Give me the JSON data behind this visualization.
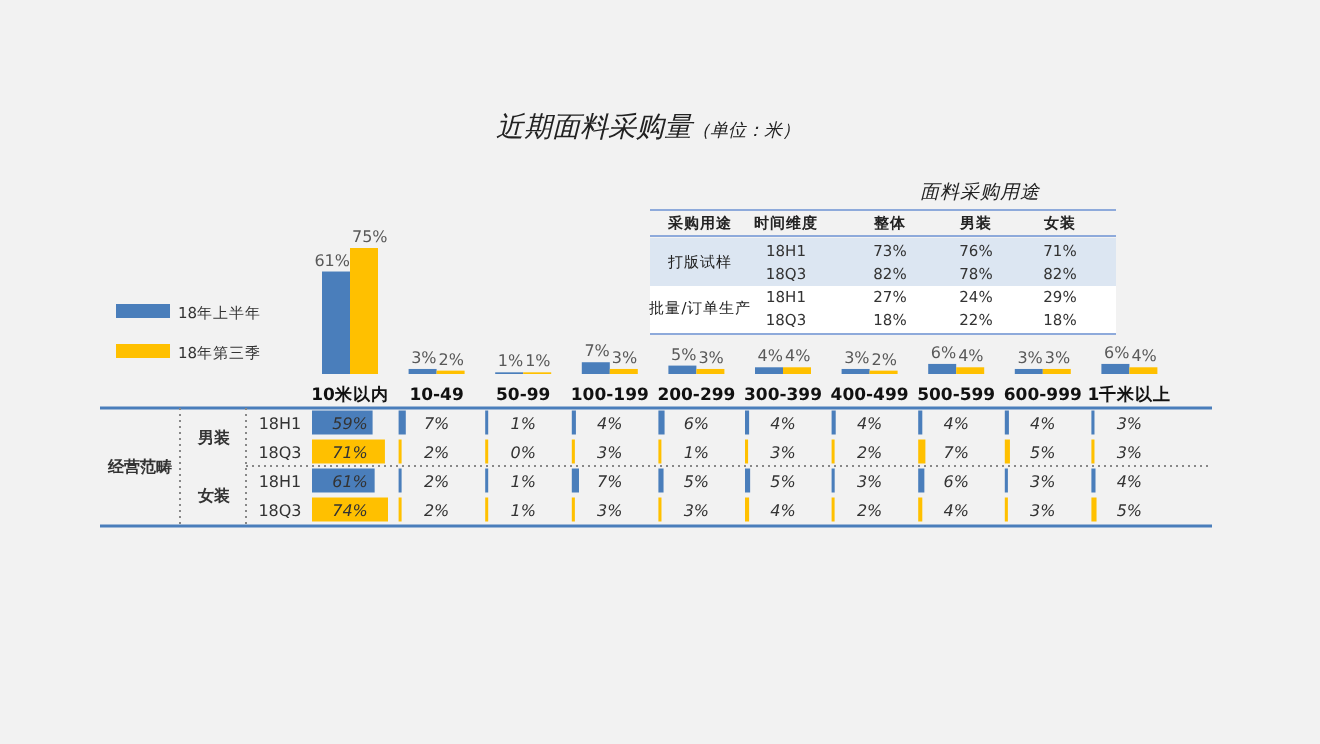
{
  "chart_data": [
    {
      "type": "bar",
      "title": "近期面料采购量",
      "subtitle": "（单位：米）",
      "categories": [
        "10米以内",
        "10-49",
        "50-99",
        "100-199",
        "200-299",
        "300-399",
        "400-499",
        "500-599",
        "600-999",
        "1千米以上"
      ],
      "legend": "left",
      "series": [
        {
          "name": "18年上半年",
          "color": "#4a7ebb",
          "values": [
            61,
            3,
            1,
            7,
            5,
            4,
            3,
            6,
            3,
            6
          ],
          "value_labels": [
            "61%",
            "3%",
            "1%",
            "7%",
            "5%",
            "4%",
            "3%",
            "6%",
            "3%",
            "6%"
          ]
        },
        {
          "name": "18年第三季",
          "color": "#ffc000",
          "values": [
            75,
            2,
            1,
            3,
            3,
            4,
            2,
            4,
            3,
            4
          ],
          "value_labels": [
            "75%",
            "2%",
            "1%",
            "3%",
            "3%",
            "4%",
            "2%",
            "4%",
            "3%",
            "4%"
          ]
        }
      ]
    },
    {
      "type": "other",
      "categories": [
        null,
        null,
        null,
        null,
        null,
        null,
        null,
        null,
        null,
        null
      ],
      "y_categories": [
        "18H1",
        "18Q3",
        "18H1",
        "18Q3"
      ],
      "colors": [
        "#4a7ebb",
        "#ffc000",
        "#4a7ebb",
        "#ffc000"
      ],
      "annotations": [
        "经营范畴",
        "男装",
        "女装"
      ],
      "cell_labels": [
        [
          "59%",
          "7%",
          "1%",
          "4%",
          "6%",
          "4%",
          "4%",
          "4%",
          "4%",
          "3%"
        ],
        [
          "71%",
          "2%",
          "0%",
          "3%",
          "1%",
          "3%",
          "2%",
          "7%",
          "5%",
          "3%"
        ],
        [
          "61%",
          "2%",
          "1%",
          "7%",
          "5%",
          "5%",
          "3%",
          "6%",
          "3%",
          "4%"
        ],
        [
          "74%",
          "2%",
          "1%",
          "3%",
          "3%",
          "4%",
          "2%",
          "4%",
          "3%",
          "5%"
        ]
      ]
    },
    {
      "type": "other",
      "title": "面料采购用途",
      "categories": [
        "采购用途",
        "时间维度",
        "整体",
        "男装",
        "女装"
      ],
      "y_categories": [
        "18H1",
        "18Q3",
        "18H1",
        "18Q3"
      ],
      "annotations": [
        "打版试样",
        "批量/订单生产"
      ],
      "cell_labels": [
        [
          "73%",
          "76%",
          "71%"
        ],
        [
          "82%",
          "78%",
          "82%"
        ],
        [
          "27%",
          "24%",
          "29%"
        ],
        [
          "18%",
          "22%",
          "18%"
        ]
      ]
    }
  ]
}
